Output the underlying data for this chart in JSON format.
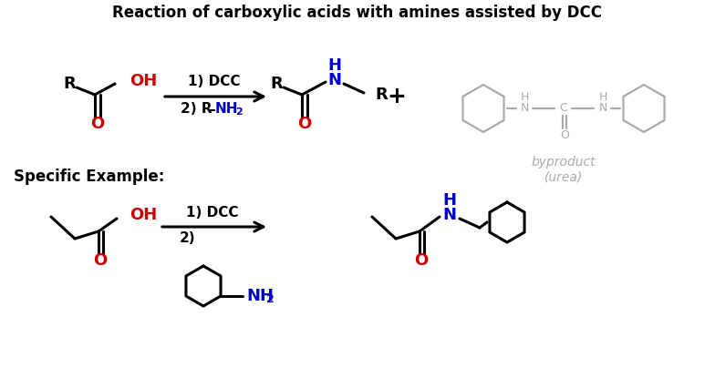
{
  "title": "Reaction of carboxylic acids with amines assisted by DCC",
  "specific_example": "Specific Example:",
  "byproduct_text": "byproduct\n(urea)",
  "colors": {
    "black": "#000000",
    "red": "#cc0000",
    "blue": "#0000cc",
    "gray": "#aaaaaa",
    "white": "#ffffff"
  },
  "bg_color": "#ffffff"
}
